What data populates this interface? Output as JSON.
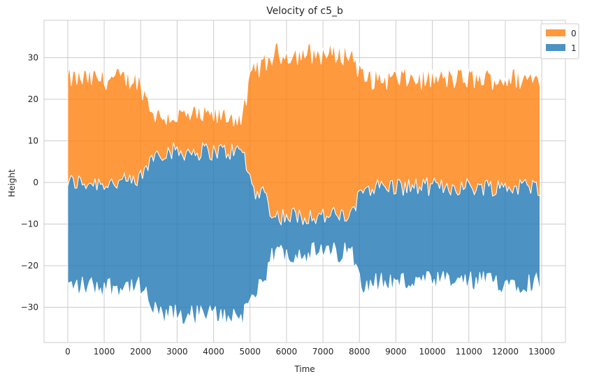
{
  "chart_data": {
    "type": "area",
    "title": "Velocity of c5_b",
    "xlabel": "Time",
    "ylabel": "Height",
    "xlim": [
      -650,
      13650
    ],
    "ylim": [
      -38.5,
      39
    ],
    "xticks": [
      0,
      1000,
      2000,
      3000,
      4000,
      5000,
      6000,
      7000,
      8000,
      9000,
      10000,
      11000,
      12000,
      13000
    ],
    "yticks": [
      -30,
      -20,
      -10,
      0,
      10,
      20,
      30
    ],
    "grid": true,
    "legend_position": "top-right",
    "colors": {
      "series_0": "#ff7f0e",
      "series_1": "#1f77b4",
      "background": "#ffffff",
      "grid": "#cccccc"
    },
    "x_range": [
      0,
      12950
    ],
    "series": [
      {
        "name": "0",
        "segments": [
          {
            "x_range": [
              0,
              2050
            ],
            "lower": 0,
            "upper": 25
          },
          {
            "x_range": [
              2050,
              2300
            ],
            "lower": 4,
            "upper": 20
          },
          {
            "x_range": [
              2300,
              4950
            ],
            "lower": 7.5,
            "upper": 16
          },
          {
            "x_range": [
              4950,
              5500
            ],
            "lower": -2,
            "upper": 28
          },
          {
            "x_range": [
              5500,
              7950
            ],
            "lower": -8,
            "upper": 31
          },
          {
            "x_range": [
              7950,
              12950
            ],
            "lower": -1,
            "upper": 25
          }
        ]
      },
      {
        "name": "1",
        "segments": [
          {
            "x_range": [
              0,
              2050
            ],
            "lower": -25,
            "upper": 0
          },
          {
            "x_range": [
              2050,
              2300
            ],
            "lower": -28,
            "upper": 4
          },
          {
            "x_range": [
              2300,
              4950
            ],
            "lower": -32,
            "upper": 7.5
          },
          {
            "x_range": [
              4950,
              5500
            ],
            "lower": -26,
            "upper": -2
          },
          {
            "x_range": [
              5500,
              7950
            ],
            "lower": -17,
            "upper": -8
          },
          {
            "x_range": [
              7950,
              12950
            ],
            "lower": -24,
            "upper": -1
          }
        ]
      }
    ]
  }
}
